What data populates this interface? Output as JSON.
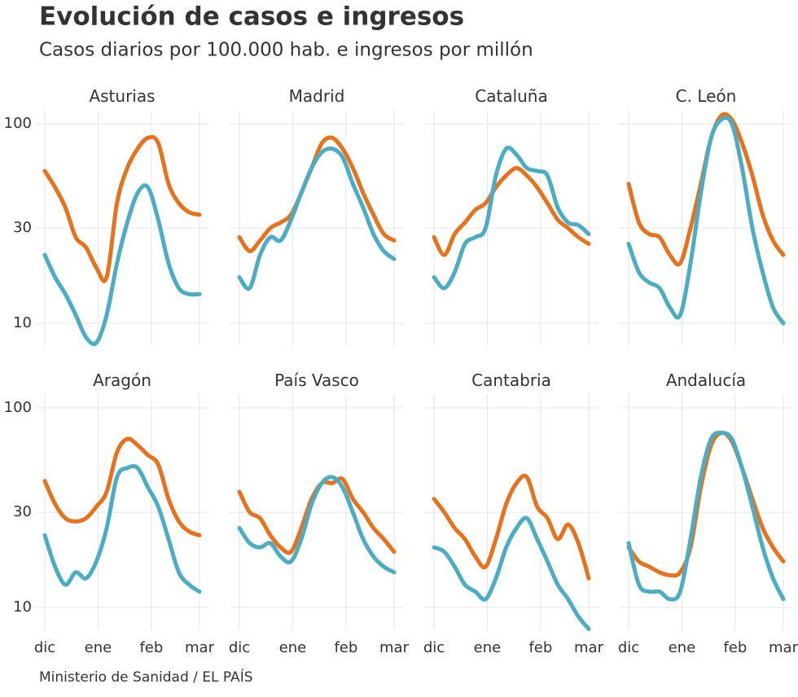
{
  "title": "Evolución de casos e ingresos",
  "subtitle": "Casos diarios por 100.000 hab. e ingresos por millón",
  "source": "Ministerio de Sanidad / EL PAÍS",
  "xlim": [
    0,
    90
  ],
  "xticks": [
    {
      "value": 0,
      "label": "dic"
    },
    {
      "value": 31,
      "label": "ene"
    },
    {
      "value": 62,
      "label": "feb"
    },
    {
      "value": 90,
      "label": "mar"
    }
  ],
  "ylim": [
    7.7,
    117
  ],
  "yticks": [
    10,
    30,
    100
  ],
  "log_y": true,
  "grid": true,
  "chart_data": [
    {
      "type": "line",
      "title": "Asturias",
      "x": [
        0,
        6,
        12,
        18,
        24,
        30,
        36,
        42,
        48,
        54,
        60,
        66,
        72,
        78,
        84,
        90
      ],
      "series": [
        {
          "color": "#e8711c",
          "values": [
            58,
            48,
            38,
            27,
            24,
            19,
            17,
            40,
            60,
            75,
            85,
            80,
            50,
            40,
            36,
            35
          ]
        },
        {
          "color": "#4bacc6",
          "values": [
            22,
            17,
            14,
            11,
            8.5,
            8,
            11,
            20,
            32,
            45,
            48,
            33,
            20,
            15,
            14,
            14
          ]
        }
      ]
    },
    {
      "type": "line",
      "title": "Madrid",
      "x": [
        0,
        6,
        12,
        18,
        24,
        30,
        36,
        42,
        48,
        54,
        60,
        66,
        72,
        78,
        84,
        90
      ],
      "series": [
        {
          "color": "#e8711c",
          "values": [
            27,
            23,
            26,
            30,
            32,
            35,
            45,
            60,
            80,
            85,
            75,
            60,
            45,
            35,
            28,
            26
          ]
        },
        {
          "color": "#4bacc6",
          "values": [
            17,
            15,
            22,
            27,
            26,
            33,
            45,
            60,
            72,
            75,
            68,
            50,
            38,
            28,
            23,
            21
          ]
        }
      ]
    },
    {
      "type": "line",
      "title": "Cataluña",
      "x": [
        0,
        6,
        12,
        18,
        24,
        30,
        36,
        42,
        48,
        54,
        60,
        66,
        72,
        78,
        84,
        90
      ],
      "series": [
        {
          "color": "#e8711c",
          "values": [
            27,
            22,
            28,
            32,
            37,
            40,
            48,
            55,
            60,
            55,
            48,
            40,
            33,
            30,
            27,
            25
          ]
        },
        {
          "color": "#4bacc6",
          "values": [
            17,
            15,
            18,
            25,
            27,
            30,
            55,
            75,
            70,
            60,
            58,
            55,
            38,
            32,
            31,
            28
          ]
        }
      ]
    },
    {
      "type": "line",
      "title": "C. León",
      "x": [
        0,
        6,
        12,
        18,
        24,
        30,
        36,
        42,
        48,
        54,
        60,
        66,
        72,
        78,
        84,
        90
      ],
      "series": [
        {
          "color": "#e8711c",
          "values": [
            50,
            32,
            28,
            27,
            22,
            20,
            30,
            50,
            85,
            110,
            105,
            80,
            55,
            35,
            26,
            22
          ]
        },
        {
          "color": "#4bacc6",
          "values": [
            25,
            18,
            16,
            15,
            12,
            11,
            20,
            45,
            85,
            105,
            100,
            60,
            30,
            18,
            12,
            10
          ]
        }
      ]
    },
    {
      "type": "line",
      "title": "Aragón",
      "x": [
        0,
        6,
        12,
        18,
        24,
        30,
        36,
        42,
        48,
        54,
        60,
        66,
        72,
        78,
        84,
        90
      ],
      "series": [
        {
          "color": "#e8711c",
          "values": [
            43,
            33,
            28,
            27,
            28,
            32,
            38,
            60,
            70,
            65,
            58,
            52,
            35,
            27,
            24,
            23
          ]
        },
        {
          "color": "#4bacc6",
          "values": [
            23,
            16,
            13,
            15,
            14,
            17,
            25,
            45,
            50,
            50,
            40,
            32,
            22,
            15,
            13,
            12
          ]
        }
      ]
    },
    {
      "type": "line",
      "title": "País Vasco",
      "x": [
        0,
        6,
        12,
        18,
        24,
        30,
        36,
        42,
        48,
        54,
        60,
        66,
        72,
        78,
        84,
        90
      ],
      "series": [
        {
          "color": "#e8711c",
          "values": [
            38,
            30,
            28,
            23,
            20,
            19,
            25,
            35,
            42,
            42,
            44,
            35,
            30,
            25,
            22,
            19
          ]
        },
        {
          "color": "#4bacc6",
          "values": [
            25,
            21,
            20,
            21,
            18,
            17,
            22,
            33,
            42,
            45,
            40,
            30,
            22,
            18,
            16,
            15
          ]
        }
      ]
    },
    {
      "type": "line",
      "title": "Cantabria",
      "x": [
        0,
        6,
        12,
        18,
        24,
        30,
        36,
        42,
        48,
        54,
        60,
        66,
        72,
        78,
        84,
        90
      ],
      "series": [
        {
          "color": "#e8711c",
          "values": [
            35,
            30,
            25,
            22,
            18,
            16,
            22,
            33,
            42,
            45,
            32,
            28,
            22,
            26,
            21,
            14
          ]
        },
        {
          "color": "#4bacc6",
          "values": [
            20,
            19,
            16,
            13,
            12,
            11,
            14,
            20,
            25,
            28,
            22,
            17,
            13,
            11,
            9,
            7.8
          ]
        }
      ]
    },
    {
      "type": "line",
      "title": "Andalucía",
      "x": [
        0,
        6,
        12,
        18,
        24,
        30,
        36,
        42,
        48,
        54,
        60,
        66,
        72,
        78,
        84,
        90
      ],
      "series": [
        {
          "color": "#e8711c",
          "values": [
            20,
            17,
            16,
            15,
            14.5,
            15,
            20,
            40,
            65,
            75,
            68,
            50,
            35,
            25,
            20,
            17
          ]
        },
        {
          "color": "#4bacc6",
          "values": [
            21,
            13,
            12,
            12,
            11,
            12,
            22,
            45,
            70,
            75,
            70,
            50,
            32,
            20,
            14,
            11
          ]
        }
      ]
    }
  ]
}
